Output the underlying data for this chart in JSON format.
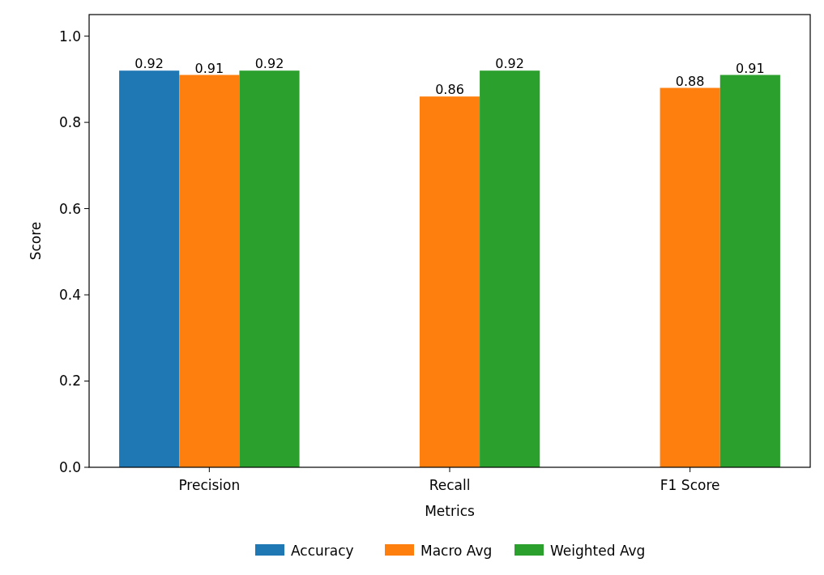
{
  "chart_data": {
    "type": "bar",
    "xlabel": "Metrics",
    "ylabel": "Score",
    "categories": [
      "Precision",
      "Recall",
      "F1 Score"
    ],
    "series": [
      {
        "name": "Accuracy",
        "color": "#1f77b4",
        "values": [
          0.92,
          null,
          null
        ]
      },
      {
        "name": "Macro Avg",
        "color": "#ff7f0e",
        "values": [
          0.91,
          0.86,
          0.88
        ]
      },
      {
        "name": "Weighted Avg",
        "color": "#2ca02c",
        "values": [
          0.92,
          0.92,
          0.91
        ]
      }
    ],
    "ylim": [
      0,
      1.05
    ],
    "yticks": [
      {
        "value": 0,
        "label": "0.0"
      },
      {
        "value": 0.2,
        "label": "0.2"
      },
      {
        "value": 0.4,
        "label": "0.4"
      },
      {
        "value": 0.6,
        "label": "0.6"
      },
      {
        "value": 0.8,
        "label": "0.8"
      },
      {
        "value": 1,
        "label": "1.0"
      }
    ],
    "data_labels": true,
    "legend": "bottom",
    "grid": false
  }
}
